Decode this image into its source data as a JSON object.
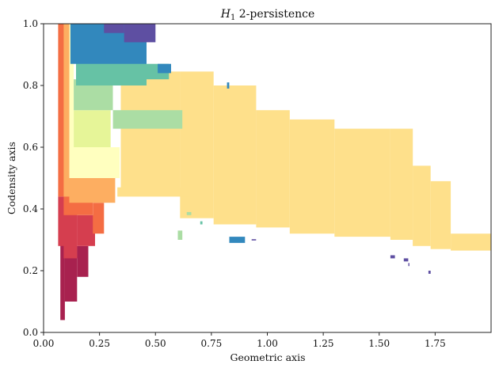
{
  "chart_data": {
    "type": "heatmap",
    "title_symbol": "H",
    "title_subscript": "1",
    "title_rest": " 2-persistence",
    "xlabel": "Geometric axis",
    "ylabel": "Codensity axis",
    "xlim": [
      0,
      2.0
    ],
    "ylim": [
      0,
      1.0
    ],
    "xticks": [
      0.0,
      0.25,
      0.5,
      0.75,
      1.0,
      1.25,
      1.5,
      1.75
    ],
    "xtick_labels": [
      "0.00",
      "0.25",
      "0.50",
      "0.75",
      "1.00",
      "1.25",
      "1.50",
      "1.75"
    ],
    "yticks": [
      0.0,
      0.2,
      0.4,
      0.6,
      0.8,
      1.0
    ],
    "ytick_labels": [
      "0.0",
      "0.2",
      "0.4",
      "0.6",
      "0.8",
      "1.0"
    ],
    "grid": false,
    "colormap": "Spectral",
    "colors": {
      "crimson": "#a8214f",
      "red": "#d53e4f",
      "orange": "#f46d43",
      "lightorange": "#fdae61",
      "yellow": "#fee08b",
      "paleyellow": "#ffffbf",
      "lime": "#e6f598",
      "lightgreen": "#abdda4",
      "teal": "#66c2a5",
      "blue": "#3288bd",
      "indigo": "#5e4fa2"
    },
    "regions": [
      {
        "c": "yellow",
        "x0": 0.345,
        "x1": 0.61,
        "y0": 0.46,
        "y1": 0.845
      },
      {
        "c": "yellow",
        "x0": 0.61,
        "x1": 0.76,
        "y0": 0.37,
        "y1": 0.845
      },
      {
        "c": "yellow",
        "x0": 0.76,
        "x1": 0.95,
        "y0": 0.35,
        "y1": 0.8
      },
      {
        "c": "yellow",
        "x0": 0.95,
        "x1": 1.1,
        "y0": 0.34,
        "y1": 0.72
      },
      {
        "c": "yellow",
        "x0": 1.1,
        "x1": 1.3,
        "y0": 0.32,
        "y1": 0.69
      },
      {
        "c": "yellow",
        "x0": 1.3,
        "x1": 1.55,
        "y0": 0.31,
        "y1": 0.66
      },
      {
        "c": "yellow",
        "x0": 1.55,
        "x1": 1.65,
        "y0": 0.3,
        "y1": 0.66
      },
      {
        "c": "yellow",
        "x0": 1.65,
        "x1": 1.73,
        "y0": 0.28,
        "y1": 0.54
      },
      {
        "c": "yellow",
        "x0": 1.73,
        "x1": 1.82,
        "y0": 0.27,
        "y1": 0.49
      },
      {
        "c": "yellow",
        "x0": 1.82,
        "x1": 2.0,
        "y0": 0.265,
        "y1": 0.32
      },
      {
        "c": "yellow",
        "x0": 0.33,
        "x1": 0.65,
        "y0": 0.44,
        "y1": 0.47
      },
      {
        "c": "crimson",
        "x0": 0.075,
        "x1": 0.095,
        "y0": 0.04,
        "y1": 0.3
      },
      {
        "c": "crimson",
        "x0": 0.095,
        "x1": 0.15,
        "y0": 0.1,
        "y1": 0.28
      },
      {
        "c": "crimson",
        "x0": 0.15,
        "x1": 0.2,
        "y0": 0.18,
        "y1": 0.28
      },
      {
        "c": "red",
        "x0": 0.065,
        "x1": 0.09,
        "y0": 0.28,
        "y1": 0.44
      },
      {
        "c": "red",
        "x0": 0.09,
        "x1": 0.15,
        "y0": 0.24,
        "y1": 0.42
      },
      {
        "c": "red",
        "x0": 0.15,
        "x1": 0.23,
        "y0": 0.28,
        "y1": 0.38
      },
      {
        "c": "orange",
        "x0": 0.065,
        "x1": 0.09,
        "y0": 0.44,
        "y1": 1.0
      },
      {
        "c": "orange",
        "x0": 0.09,
        "x1": 0.22,
        "y0": 0.38,
        "y1": 0.46
      },
      {
        "c": "orange",
        "x0": 0.22,
        "x1": 0.27,
        "y0": 0.32,
        "y1": 0.42
      },
      {
        "c": "lightorange",
        "x0": 0.09,
        "x1": 0.115,
        "y0": 0.44,
        "y1": 1.0
      },
      {
        "c": "lightorange",
        "x0": 0.115,
        "x1": 0.32,
        "y0": 0.42,
        "y1": 0.5
      },
      {
        "c": "paleyellow",
        "x0": 0.115,
        "x1": 0.34,
        "y0": 0.5,
        "y1": 0.6
      },
      {
        "c": "paleyellow",
        "x0": 0.115,
        "x1": 0.135,
        "y0": 0.6,
        "y1": 1.0
      },
      {
        "c": "lime",
        "x0": 0.135,
        "x1": 0.3,
        "y0": 0.6,
        "y1": 0.72
      },
      {
        "c": "lightgreen",
        "x0": 0.135,
        "x1": 0.31,
        "y0": 0.72,
        "y1": 0.82
      },
      {
        "c": "lightgreen",
        "x0": 0.31,
        "x1": 0.62,
        "y0": 0.66,
        "y1": 0.72
      },
      {
        "c": "teal",
        "x0": 0.145,
        "x1": 0.46,
        "y0": 0.8,
        "y1": 0.9
      },
      {
        "c": "teal",
        "x0": 0.46,
        "x1": 0.56,
        "y0": 0.82,
        "y1": 0.87
      },
      {
        "c": "blue",
        "x0": 0.12,
        "x1": 0.46,
        "y0": 0.87,
        "y1": 1.0
      },
      {
        "c": "blue",
        "x0": 0.51,
        "x1": 0.57,
        "y0": 0.84,
        "y1": 0.87
      },
      {
        "c": "indigo",
        "x0": 0.36,
        "x1": 0.5,
        "y0": 0.94,
        "y1": 1.0
      },
      {
        "c": "indigo",
        "x0": 0.27,
        "x1": 0.36,
        "y0": 0.97,
        "y1": 1.0
      },
      {
        "c": "blue",
        "x0": 0.83,
        "x1": 0.9,
        "y0": 0.29,
        "y1": 0.31
      },
      {
        "c": "blue",
        "x0": 0.82,
        "x1": 0.83,
        "y0": 0.79,
        "y1": 0.81
      },
      {
        "c": "lightgreen",
        "x0": 0.6,
        "x1": 0.62,
        "y0": 0.3,
        "y1": 0.33
      },
      {
        "c": "lightgreen",
        "x0": 0.64,
        "x1": 0.66,
        "y0": 0.38,
        "y1": 0.39
      },
      {
        "c": "teal",
        "x0": 0.7,
        "x1": 0.71,
        "y0": 0.35,
        "y1": 0.36
      },
      {
        "c": "indigo",
        "x0": 1.55,
        "x1": 1.57,
        "y0": 0.24,
        "y1": 0.25
      },
      {
        "c": "indigo",
        "x0": 1.61,
        "x1": 1.63,
        "y0": 0.23,
        "y1": 0.24
      },
      {
        "c": "indigo",
        "x0": 1.72,
        "x1": 1.73,
        "y0": 0.19,
        "y1": 0.2
      },
      {
        "c": "indigo",
        "x0": 1.63,
        "x1": 1.635,
        "y0": 0.215,
        "y1": 0.225
      },
      {
        "c": "indigo",
        "x0": 0.93,
        "x1": 0.95,
        "y0": 0.298,
        "y1": 0.302
      }
    ]
  }
}
